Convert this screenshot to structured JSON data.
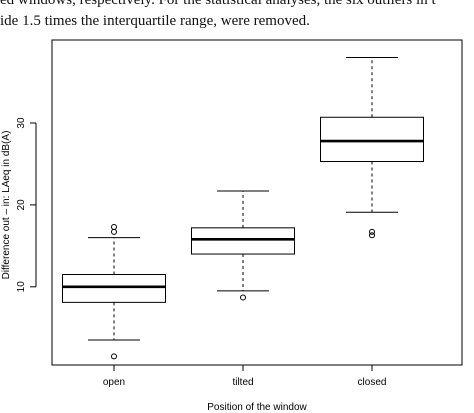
{
  "caption": {
    "lines": [
      "ed windows, respectively. For the statistical analyses, the six outliers in t",
      "ide 1.5 times the interquartile range, were removed."
    ]
  },
  "chart_data": {
    "type": "box",
    "title": "",
    "xlabel": "Position of the window",
    "ylabel": "Difference out – in: LAeq in dB(A)",
    "ylim": [
      0,
      40
    ],
    "yticks": [
      10,
      20,
      30
    ],
    "grid": false,
    "categories": [
      "open",
      "tilted",
      "closed"
    ],
    "boxes": [
      {
        "category": "open",
        "whisker_low": 3.5,
        "q1": 8.1,
        "median": 10.0,
        "q3": 11.5,
        "whisker_high": 16.0,
        "outliers": [
          1.5,
          16.7,
          17.3
        ]
      },
      {
        "category": "tilted",
        "whisker_low": 9.5,
        "q1": 14.0,
        "median": 15.8,
        "q3": 17.2,
        "whisker_high": 21.7,
        "outliers": [
          8.7
        ]
      },
      {
        "category": "closed",
        "whisker_low": 19.1,
        "q1": 25.3,
        "median": 27.8,
        "q3": 30.7,
        "whisker_high": 38.0,
        "outliers": [
          16.3,
          16.7
        ]
      }
    ]
  }
}
